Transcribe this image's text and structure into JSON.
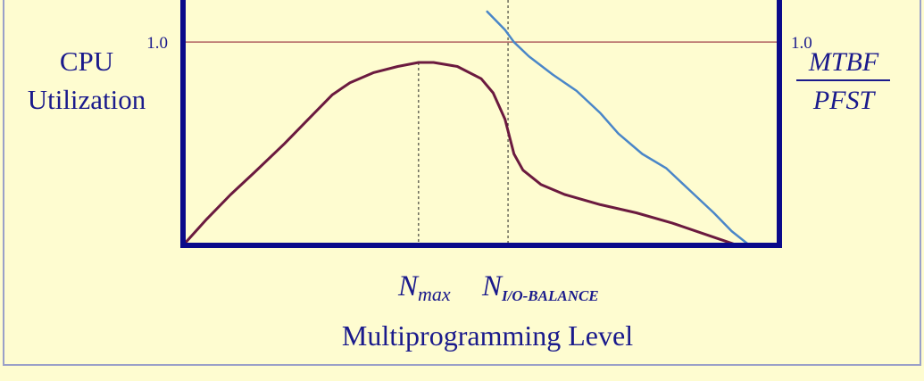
{
  "chart_data": {
    "type": "line",
    "xlabel": "Multiprogramming Level",
    "ylabel_left": [
      "CPU",
      "Utilization"
    ],
    "ylabel_right": {
      "numerator": "MTBF",
      "denominator": "PFST"
    },
    "tick_left": "1.0",
    "tick_right": "1.0",
    "xlim": [
      0,
      100
    ],
    "ylim": [
      0,
      1.15
    ],
    "reference_line_y": 1.0,
    "markers": [
      {
        "base": "N",
        "sub": "max",
        "x": 39.5
      },
      {
        "base": "N",
        "sub": "I/O-BALANCE",
        "x": 54.5
      }
    ],
    "series": [
      {
        "role": "cpu-utilization",
        "color": "#6b1a3f",
        "points": [
          [
            0,
            0
          ],
          [
            4,
            0.13
          ],
          [
            8,
            0.25
          ],
          [
            12,
            0.36
          ],
          [
            17,
            0.5
          ],
          [
            21,
            0.62
          ],
          [
            25,
            0.74
          ],
          [
            28,
            0.8
          ],
          [
            32,
            0.85
          ],
          [
            36,
            0.88
          ],
          [
            39.5,
            0.9
          ],
          [
            42,
            0.9
          ],
          [
            46,
            0.88
          ],
          [
            50,
            0.82
          ],
          [
            52,
            0.75
          ],
          [
            54,
            0.62
          ],
          [
            55.5,
            0.45
          ],
          [
            57,
            0.37
          ],
          [
            60,
            0.3
          ],
          [
            64,
            0.25
          ],
          [
            70,
            0.2
          ],
          [
            76,
            0.16
          ],
          [
            82,
            0.11
          ],
          [
            88,
            0.05
          ],
          [
            92,
            0.01
          ],
          [
            93,
            0
          ]
        ]
      },
      {
        "role": "mtbf-pfst",
        "color": "#4a86c8",
        "points": [
          [
            51,
            1.15
          ],
          [
            54,
            1.06
          ],
          [
            55.5,
            1.0
          ],
          [
            58,
            0.93
          ],
          [
            62,
            0.84
          ],
          [
            66,
            0.76
          ],
          [
            70,
            0.65
          ],
          [
            73,
            0.55
          ],
          [
            77,
            0.45
          ],
          [
            81,
            0.38
          ],
          [
            85,
            0.27
          ],
          [
            89,
            0.16
          ],
          [
            92,
            0.07
          ],
          [
            95,
            0
          ]
        ]
      }
    ],
    "colors": {
      "background": "#fefcd0",
      "axis": "#0a0a8a",
      "reference_line": "#b06060",
      "text": "#1a1a8c",
      "border": "#9aa0c8"
    }
  }
}
